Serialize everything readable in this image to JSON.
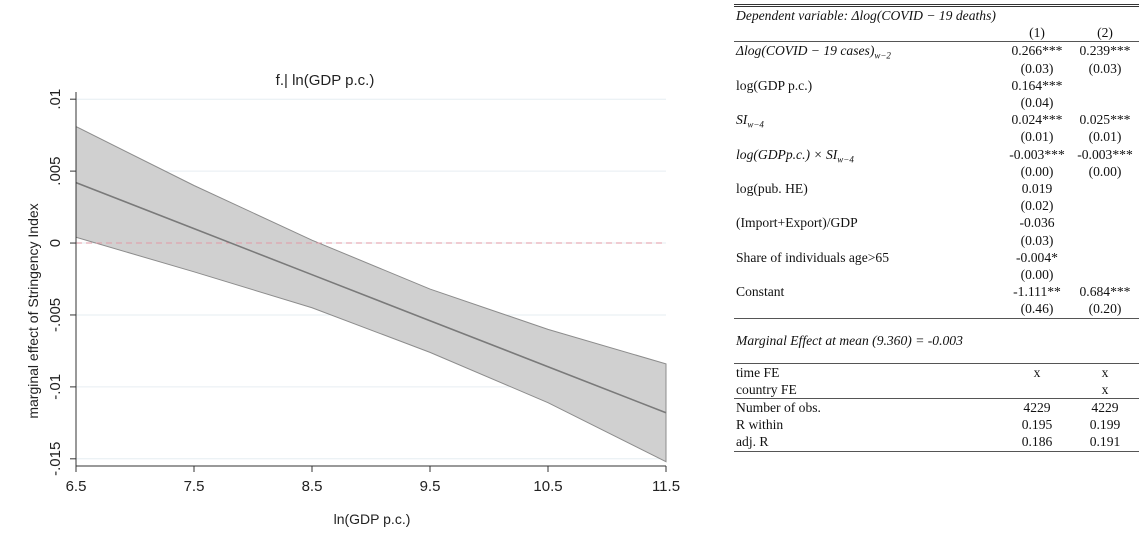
{
  "chart_data": {
    "type": "line",
    "title": "f.| ln(GDP p.c.)",
    "xlabel": "ln(GDP p.c.)",
    "ylabel": "marginal effect of Stringency Index",
    "xlim": [
      6.5,
      11.5
    ],
    "ylim": [
      -0.0155,
      0.0105
    ],
    "xticks": [
      "6.5",
      "7.5",
      "8.5",
      "9.5",
      "10.5",
      "11.5"
    ],
    "yticks": [
      ".01",
      ".005",
      "0",
      "-.005",
      "-.01",
      "-.015"
    ],
    "grid": true,
    "x": [
      6.5,
      7.5,
      8.5,
      9.5,
      10.5,
      11.5
    ],
    "estimate": [
      0.0042,
      0.001,
      -0.0022,
      -0.0054,
      -0.0086,
      -0.0118
    ],
    "ci_upper": [
      0.0081,
      0.004,
      0.0002,
      -0.0032,
      -0.006,
      -0.0084
    ],
    "ci_lower": [
      0.0004,
      -0.002,
      -0.0045,
      -0.0076,
      -0.0111,
      -0.0152
    ],
    "reference_line": 0,
    "colors": {
      "line": "#7a7a7a",
      "band": "#d0d0d0",
      "band_edge": "#8c8c8c",
      "refline": "#e29aa6",
      "grid": "#e6eef2"
    }
  },
  "table": {
    "header": "Dependent variable: Δlog(COVID − 19 deaths)",
    "col1": "(1)",
    "col2": "(2)",
    "rows": [
      {
        "label": "Δlog(COVID − 19 cases)",
        "sub": "w−2",
        "c1": "0.266***",
        "c2": "0.239***"
      },
      {
        "label": "",
        "sub": "",
        "c1": "(0.03)",
        "c2": "(0.03)"
      },
      {
        "label": "log(GDP p.c.)",
        "sub": "",
        "c1": "0.164***",
        "c2": ""
      },
      {
        "label": "",
        "sub": "",
        "c1": "(0.04)",
        "c2": ""
      },
      {
        "label": "SI",
        "sub": "w−4",
        "c1": "0.024***",
        "c2": "0.025***"
      },
      {
        "label": "",
        "sub": "",
        "c1": "(0.01)",
        "c2": "(0.01)"
      },
      {
        "label": "log(GDPp.c.) × SI",
        "sub": "w−4",
        "c1": "-0.003***",
        "c2": "-0.003***"
      },
      {
        "label": "",
        "sub": "",
        "c1": "(0.00)",
        "c2": "(0.00)"
      },
      {
        "label": "log(pub. HE)",
        "sub": "",
        "c1": "0.019",
        "c2": ""
      },
      {
        "label": "",
        "sub": "",
        "c1": "(0.02)",
        "c2": ""
      },
      {
        "label": "(Import+Export)/GDP",
        "sub": "",
        "c1": "-0.036",
        "c2": ""
      },
      {
        "label": "",
        "sub": "",
        "c1": "(0.03)",
        "c2": ""
      },
      {
        "label": "Share of individuals age>65",
        "sub": "",
        "c1": "-0.004*",
        "c2": ""
      },
      {
        "label": "",
        "sub": "",
        "c1": "(0.00)",
        "c2": ""
      },
      {
        "label": "Constant",
        "sub": "",
        "c1": "-1.111**",
        "c2": "0.684***"
      },
      {
        "label": "",
        "sub": "",
        "c1": "(0.46)",
        "c2": "(0.20)"
      }
    ],
    "note": "Marginal Effect at mean (9.360) = -0.003",
    "fe_rows": [
      {
        "label": "time FE",
        "c1": "x",
        "c2": "x"
      },
      {
        "label": "country FE",
        "c1": "",
        "c2": "x"
      }
    ],
    "stat_rows": [
      {
        "label": "Number of obs.",
        "c1": "4229",
        "c2": "4229"
      },
      {
        "label": "R within",
        "c1": "0.195",
        "c2": "0.199"
      },
      {
        "label": "adj. R",
        "c1": "0.186",
        "c2": "0.191"
      }
    ]
  }
}
